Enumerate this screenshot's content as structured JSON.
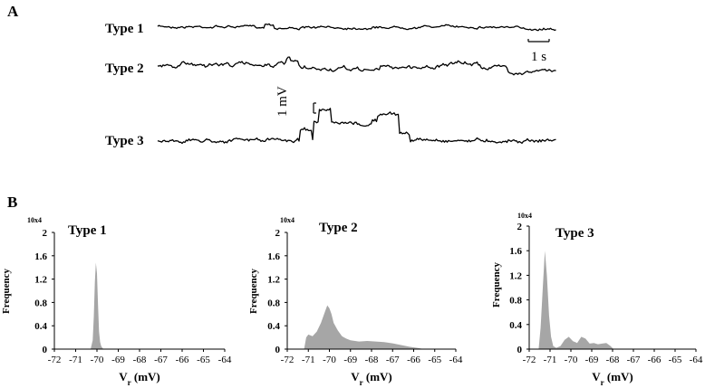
{
  "panel_a": {
    "letter": "A",
    "traces": [
      {
        "label": "Type 1"
      },
      {
        "label": "Type 2"
      },
      {
        "label": "Type 3"
      }
    ],
    "time_scale_label": "1 s",
    "voltage_scale_label": "1 mV"
  },
  "panel_b": {
    "letter": "B"
  },
  "chart_data": [
    {
      "type": "area",
      "title": "Type 1",
      "xlabel": "V_r (mV)",
      "ylabel": "Frequency",
      "y_multiplier": "10x4",
      "xlim": [
        -72,
        -64
      ],
      "ylim": [
        0,
        2
      ],
      "xticks": [
        "-72",
        "-71",
        "-70",
        "-69",
        "-68",
        "-67",
        "-66",
        "-65",
        "-64"
      ],
      "yticks": [
        "0",
        "0.4",
        "0.8",
        "1.2",
        "1.6",
        "2"
      ],
      "x": [
        -70.3,
        -70.2,
        -70.15,
        -70.1,
        -70.05,
        -70.0,
        -69.95,
        -69.9,
        -69.85,
        -69.8,
        -69.7
      ],
      "y": [
        0,
        0.15,
        0.55,
        1.15,
        1.48,
        1.3,
        0.75,
        0.3,
        0.12,
        0.05,
        0
      ]
    },
    {
      "type": "area",
      "title": "Type 2",
      "xlabel": "V_r (mV)",
      "ylabel": "Frequency",
      "y_multiplier": "10x4",
      "xlim": [
        -72,
        -64
      ],
      "ylim": [
        0,
        2
      ],
      "xticks": [
        "-72",
        "-71",
        "-70",
        "-69",
        "-68",
        "-67",
        "-66",
        "-65",
        "-64"
      ],
      "yticks": [
        "0",
        "0.4",
        "0.8",
        "1.2",
        "1.6",
        "2"
      ],
      "x": [
        -71.2,
        -71.1,
        -71.0,
        -70.8,
        -70.6,
        -70.4,
        -70.2,
        -70.1,
        -70.0,
        -69.9,
        -69.8,
        -69.6,
        -69.4,
        -69.2,
        -69.0,
        -68.6,
        -68.2,
        -67.8,
        -67.4,
        -67.0,
        -66.6,
        -66.2,
        -65.8,
        -65.5
      ],
      "y": [
        0,
        0.2,
        0.25,
        0.22,
        0.3,
        0.45,
        0.65,
        0.75,
        0.7,
        0.6,
        0.45,
        0.32,
        0.22,
        0.18,
        0.15,
        0.13,
        0.14,
        0.13,
        0.12,
        0.1,
        0.07,
        0.04,
        0.02,
        0
      ]
    },
    {
      "type": "area",
      "title": "Type 3",
      "xlabel": "V_r (mV)",
      "ylabel": "Frequency",
      "y_multiplier": "10x4",
      "xlim": [
        -72,
        -64
      ],
      "ylim": [
        0,
        2
      ],
      "xticks": [
        "-72",
        "-71",
        "-70",
        "-69",
        "-68",
        "-67",
        "-66",
        "-65",
        "-64"
      ],
      "yticks": [
        "0",
        "0.4",
        "0.8",
        "1.2",
        "1.6",
        "2"
      ],
      "x": [
        -71.55,
        -71.45,
        -71.35,
        -71.25,
        -71.15,
        -71.05,
        -70.95,
        -70.85,
        -70.7,
        -70.5,
        -70.3,
        -70.1,
        -69.9,
        -69.7,
        -69.5,
        -69.3,
        -69.1,
        -68.9,
        -68.7,
        -68.5,
        -68.3,
        -68.1,
        -67.95
      ],
      "y": [
        0,
        0.35,
        1.0,
        1.6,
        1.2,
        0.55,
        0.2,
        0.05,
        0.02,
        0.05,
        0.15,
        0.2,
        0.13,
        0.1,
        0.2,
        0.17,
        0.09,
        0.1,
        0.08,
        0.09,
        0.1,
        0.05,
        0
      ]
    }
  ]
}
